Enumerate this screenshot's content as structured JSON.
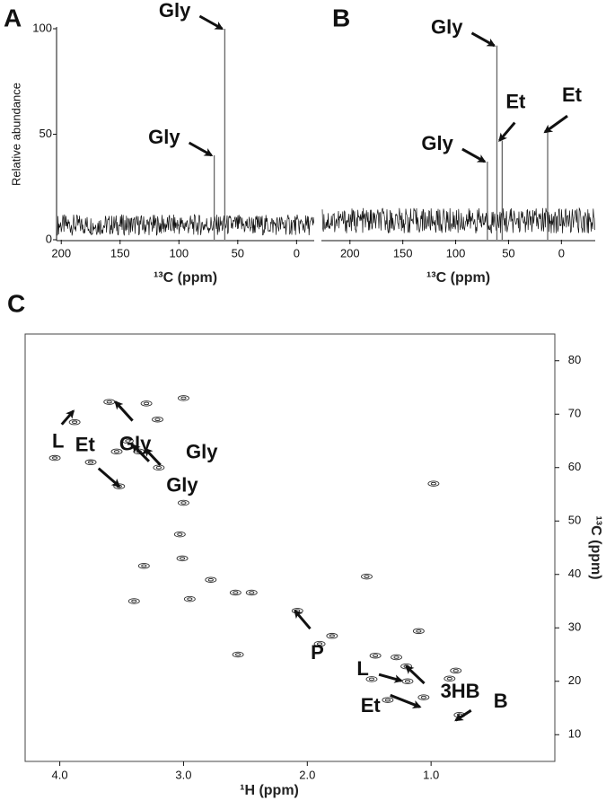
{
  "chart_data": [
    {
      "panel": "A",
      "type": "spectrum",
      "ylabel": "Relative abundance",
      "xlabel": "¹³C (ppm)",
      "xlim": [
        204,
        -15
      ],
      "xticks": [
        200,
        150,
        100,
        50,
        0
      ],
      "ylim": [
        0,
        100
      ],
      "yticks": [
        0,
        50,
        100
      ],
      "baseline": [
        2,
        12
      ],
      "x": [
        70,
        61
      ],
      "values": [
        40,
        100
      ],
      "labels": [
        "Gly",
        "Gly"
      ]
    },
    {
      "panel": "B",
      "type": "spectrum",
      "xlabel": "¹³C (ppm)",
      "xlim": [
        227,
        -32
      ],
      "xticks": [
        200,
        150,
        100,
        50,
        0
      ],
      "ylim": [
        0,
        100
      ],
      "baseline": [
        3,
        15
      ],
      "x": [
        70,
        61,
        56,
        13
      ],
      "values": [
        37,
        92,
        47,
        51
      ],
      "labels": [
        "Gly",
        "Gly",
        "Et",
        "Et"
      ]
    },
    {
      "panel": "C",
      "type": "scatter",
      "xlabel": "¹H (ppm)",
      "ylabel": "¹³C (ppm)",
      "xlim": [
        4.28,
        0
      ],
      "xticks": [
        {
          "value": 4,
          "label": "4.0"
        },
        {
          "value": 3,
          "label": "3.0"
        },
        {
          "value": 2,
          "label": "2.0"
        },
        {
          "value": 1,
          "label": "1.0"
        }
      ],
      "ylim": [
        5,
        85
      ],
      "yticks": [
        10,
        20,
        30,
        40,
        50,
        60,
        70,
        80
      ],
      "x": [
        1.06,
        0.77,
        1.19,
        1.2,
        1.28,
        1.1,
        1.48,
        1.45,
        2.08,
        1.9,
        1.8,
        2.56,
        2.95,
        2.78,
        2.58,
        2.45,
        3.32,
        3.01,
        3.03,
        3.0,
        3.4,
        3.52,
        3.54,
        3.36,
        3.45,
        3.75,
        4.04,
        3.6,
        3.88,
        3.21,
        3.3,
        0.98,
        1.52,
        1.35,
        0.85,
        0.8,
        3.2,
        3.0
      ],
      "y": [
        17,
        13.7,
        20,
        22.8,
        24.5,
        29.4,
        20.4,
        24.8,
        33.2,
        27,
        28.5,
        25,
        35.4,
        39,
        36.6,
        36.6,
        41.6,
        43,
        47.5,
        53.4,
        35,
        56.5,
        63,
        63,
        65,
        61,
        61.8,
        72.3,
        68.5,
        69,
        72,
        57,
        39.6,
        16.5,
        20.5,
        22,
        60,
        73
      ],
      "annotations": [
        {
          "text": "Et",
          "x": 1.09,
          "y": 15.2
        },
        {
          "text": "L",
          "x": 1.24,
          "y": 20.1
        },
        {
          "text": "3HB",
          "x": 1.2,
          "y": 22.8
        },
        {
          "text": "B",
          "x": 0.8,
          "y": 12.7
        },
        {
          "text": "P",
          "x": 2.1,
          "y": 33.2
        },
        {
          "text": "Et",
          "x": 3.52,
          "y": 56.5
        },
        {
          "text": "Gly",
          "x": 3.31,
          "y": 63.5
        },
        {
          "text": "Gly",
          "x": 3.41,
          "y": 64.2
        },
        {
          "text": "Gly",
          "x": 3.55,
          "y": 72.3
        },
        {
          "text": "L",
          "x": 3.89,
          "y": 70.6
        }
      ]
    }
  ]
}
